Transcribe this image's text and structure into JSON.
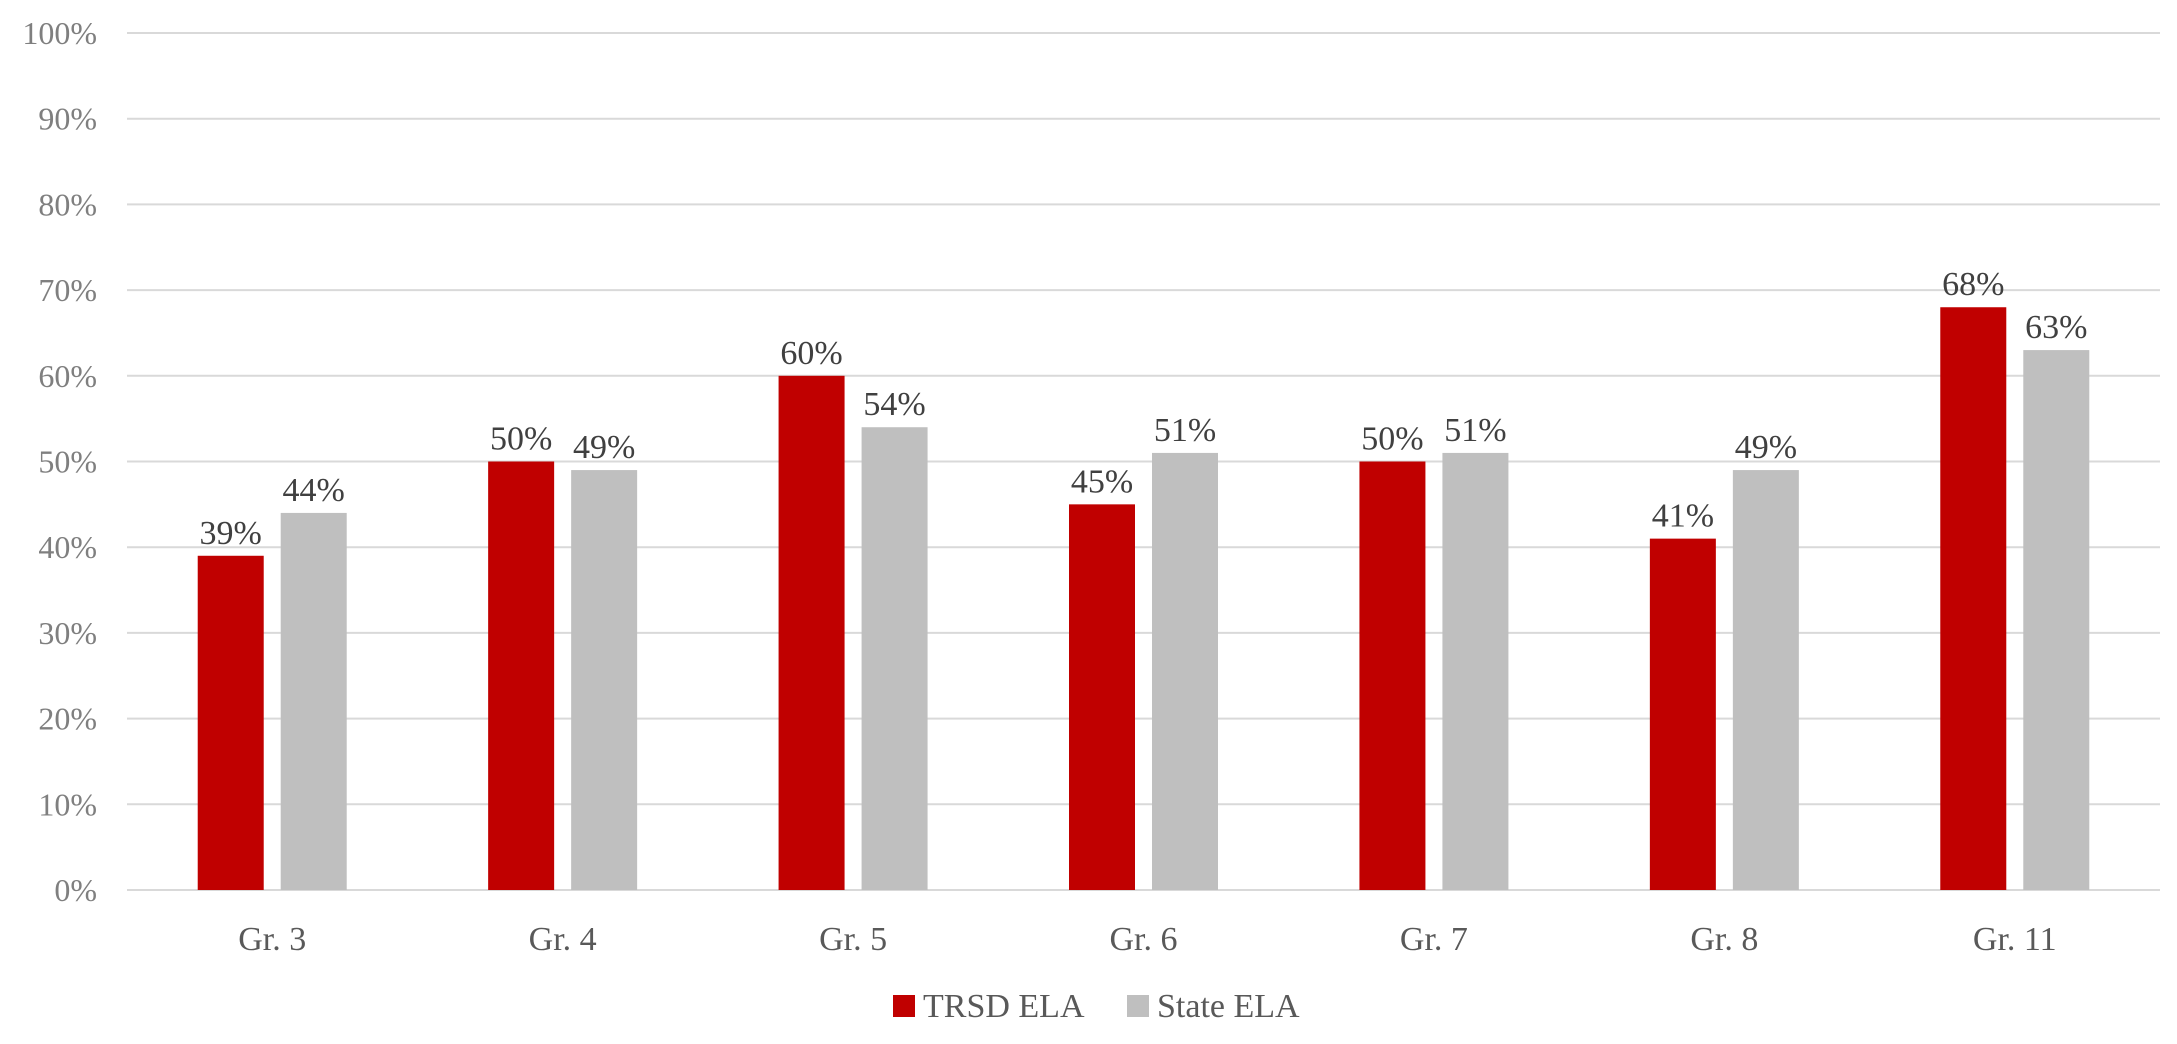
{
  "colors": {
    "trsd": "#c00000",
    "state": "#bfbfbf"
  },
  "chart_data": {
    "type": "bar",
    "title": "",
    "xlabel": "",
    "ylabel": "",
    "categories": [
      "Gr. 3",
      "Gr. 4",
      "Gr. 5",
      "Gr. 6",
      "Gr. 7",
      "Gr. 8",
      "Gr. 11"
    ],
    "series": [
      {
        "name": "TRSD ELA",
        "values": [
          39,
          50,
          60,
          45,
          50,
          41,
          68
        ]
      },
      {
        "name": "State ELA",
        "values": [
          44,
          49,
          54,
          51,
          51,
          49,
          63
        ]
      }
    ],
    "ylim": [
      0,
      100
    ],
    "yticks": [
      0,
      10,
      20,
      30,
      40,
      50,
      60,
      70,
      80,
      90,
      100
    ],
    "value_suffix": "%",
    "grid": true,
    "legend_position": "bottom"
  }
}
